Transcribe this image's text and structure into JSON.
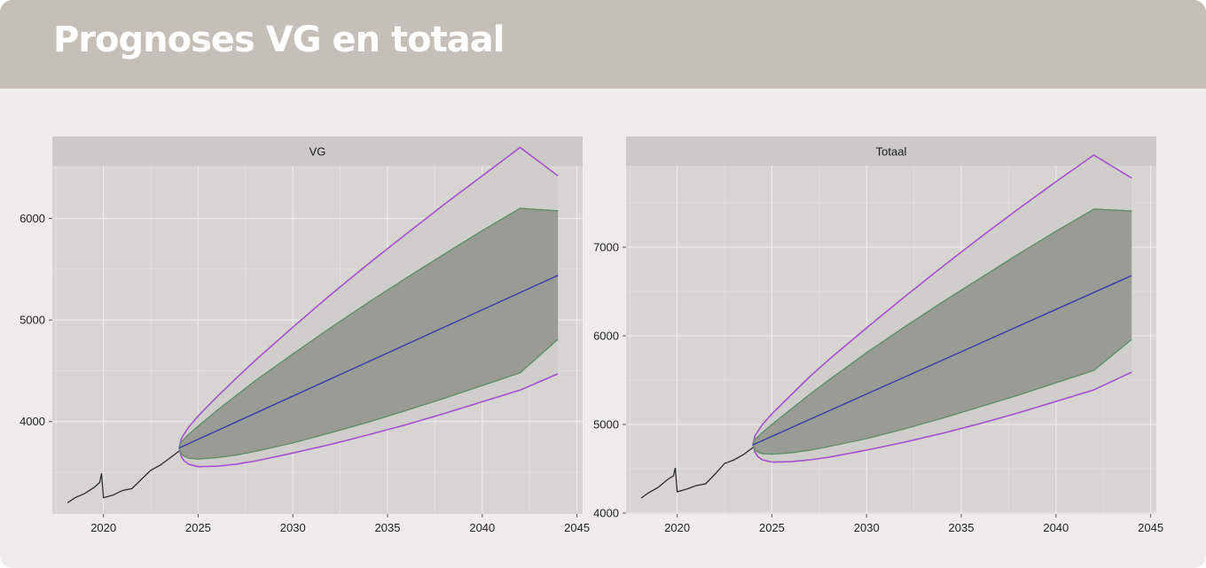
{
  "header": {
    "title": "Prognoses VG en totaal"
  },
  "colors": {
    "panel": "#d6d5d1",
    "strip": "#cbcac6",
    "grid": "#ecebe8",
    "history": "#2b2b2b",
    "forecast": "#3b3ba8",
    "band80_fill": "#9b9b96",
    "band80_line": "#5f8f6a",
    "band95_fill": "#cfcecb",
    "band95_line": "#a64fd0"
  },
  "chart_data": [
    {
      "type": "line",
      "title": "VG",
      "xlim": [
        2017.3,
        2045.3
      ],
      "ylim": [
        3090,
        6520
      ],
      "x_ticks": [
        2020,
        2025,
        2030,
        2035,
        2040,
        2045
      ],
      "y_ticks": [
        4000,
        5000,
        6000
      ],
      "history": {
        "x": [
          2018.1,
          2018.5,
          2019.0,
          2019.5,
          2019.8,
          2019.9,
          2020.0,
          2020.5,
          2021.0,
          2021.5,
          2022.0,
          2022.5,
          2023.0,
          2023.5,
          2024.0
        ],
        "y": [
          3200,
          3250,
          3290,
          3350,
          3400,
          3490,
          3250,
          3275,
          3320,
          3340,
          3430,
          3520,
          3570,
          3640,
          3710
        ]
      },
      "forecast": {
        "x": [
          2024.0,
          2044.0
        ],
        "y": [
          3740,
          5440
        ]
      },
      "band80": {
        "x": [
          2024.0,
          2024.1,
          2024.25,
          2024.5,
          2025,
          2026,
          2027,
          2028,
          2030,
          2032,
          2034,
          2036,
          2038,
          2040,
          2042,
          2044
        ],
        "upper": [
          3740,
          3795,
          3825,
          3875,
          3955,
          4110,
          4255,
          4400,
          4665,
          4925,
          5175,
          5415,
          5650,
          5880,
          6100,
          6075
        ],
        "lower": [
          3740,
          3685,
          3660,
          3638,
          3630,
          3645,
          3670,
          3705,
          3790,
          3890,
          3995,
          4110,
          4230,
          4355,
          4480,
          4810
        ]
      },
      "band95": {
        "x": [
          2024.0,
          2024.1,
          2024.25,
          2024.5,
          2025,
          2026,
          2027,
          2028,
          2030,
          2032,
          2034,
          2036,
          2038,
          2040,
          2042,
          2044
        ],
        "upper": [
          3740,
          3825,
          3875,
          3945,
          4055,
          4245,
          4425,
          4600,
          4930,
          5250,
          5555,
          5850,
          6140,
          6420,
          6700,
          6420
        ],
        "lower": [
          3740,
          3660,
          3615,
          3580,
          3555,
          3560,
          3580,
          3610,
          3690,
          3775,
          3870,
          3970,
          4080,
          4195,
          4310,
          4470
        ]
      }
    },
    {
      "type": "line",
      "title": "Totaal",
      "xlim": [
        2017.3,
        2045.3
      ],
      "ylim": [
        3990,
        7920
      ],
      "x_ticks": [
        2020,
        2025,
        2030,
        2035,
        2040,
        2045
      ],
      "y_ticks": [
        4000,
        5000,
        6000,
        7000
      ],
      "history": {
        "x": [
          2018.1,
          2018.5,
          2019.0,
          2019.5,
          2019.8,
          2019.9,
          2020.0,
          2020.5,
          2021.0,
          2021.5,
          2022.0,
          2022.5,
          2023.0,
          2023.5,
          2024.0
        ],
        "y": [
          4170,
          4230,
          4290,
          4380,
          4420,
          4510,
          4240,
          4270,
          4310,
          4330,
          4440,
          4560,
          4600,
          4660,
          4740
        ]
      },
      "forecast": {
        "x": [
          2024.0,
          2044.0
        ],
        "y": [
          4770,
          6680
        ]
      },
      "band80": {
        "x": [
          2024.0,
          2024.1,
          2024.25,
          2024.5,
          2025,
          2026,
          2027,
          2028,
          2030,
          2032,
          2034,
          2036,
          2038,
          2040,
          2042,
          2044
        ],
        "upper": [
          4770,
          4830,
          4860,
          4910,
          5000,
          5170,
          5340,
          5500,
          5810,
          6100,
          6380,
          6650,
          6920,
          7180,
          7430,
          7410
        ],
        "lower": [
          4770,
          4710,
          4690,
          4670,
          4665,
          4680,
          4710,
          4750,
          4840,
          4950,
          5070,
          5200,
          5330,
          5470,
          5610,
          5960
        ]
      },
      "band95": {
        "x": [
          2024.0,
          2024.1,
          2024.25,
          2024.5,
          2025,
          2026,
          2027,
          2028,
          2030,
          2032,
          2034,
          2036,
          2038,
          2040,
          2042,
          2044
        ],
        "upper": [
          4770,
          4870,
          4920,
          5000,
          5120,
          5330,
          5540,
          5730,
          6090,
          6440,
          6780,
          7110,
          7430,
          7740,
          8040,
          7780
        ],
        "lower": [
          4770,
          4690,
          4640,
          4600,
          4575,
          4580,
          4600,
          4630,
          4710,
          4800,
          4900,
          5010,
          5130,
          5260,
          5390,
          5590
        ]
      }
    }
  ]
}
